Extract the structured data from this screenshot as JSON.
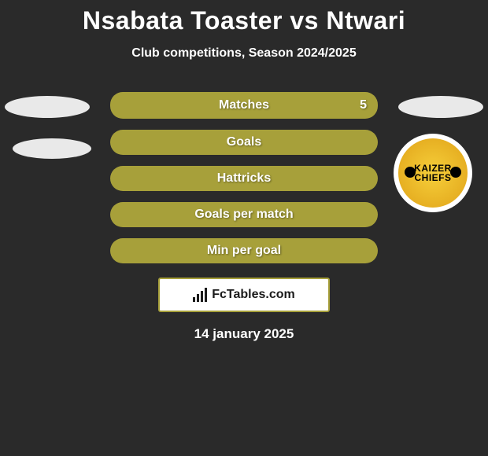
{
  "header": {
    "title": "Nsabata Toaster vs Ntwari",
    "subtitle": "Club competitions, Season 2024/2025"
  },
  "stats": {
    "rows": [
      {
        "label": "Matches",
        "right_value": "5"
      },
      {
        "label": "Goals",
        "right_value": ""
      },
      {
        "label": "Hattricks",
        "right_value": ""
      },
      {
        "label": "Goals per match",
        "right_value": ""
      },
      {
        "label": "Min per goal",
        "right_value": ""
      }
    ],
    "bar_color": "#a7a03a",
    "text_color": "#ffffff"
  },
  "badge": {
    "line1": "KAIZER",
    "line2": "CHIEFS",
    "bg_color": "#e0a218"
  },
  "branding": {
    "text": "FcTables.com"
  },
  "footer": {
    "date": "14 january 2025"
  },
  "colors": {
    "background": "#2a2a2a",
    "accent": "#a7a03a",
    "text": "#ffffff"
  }
}
